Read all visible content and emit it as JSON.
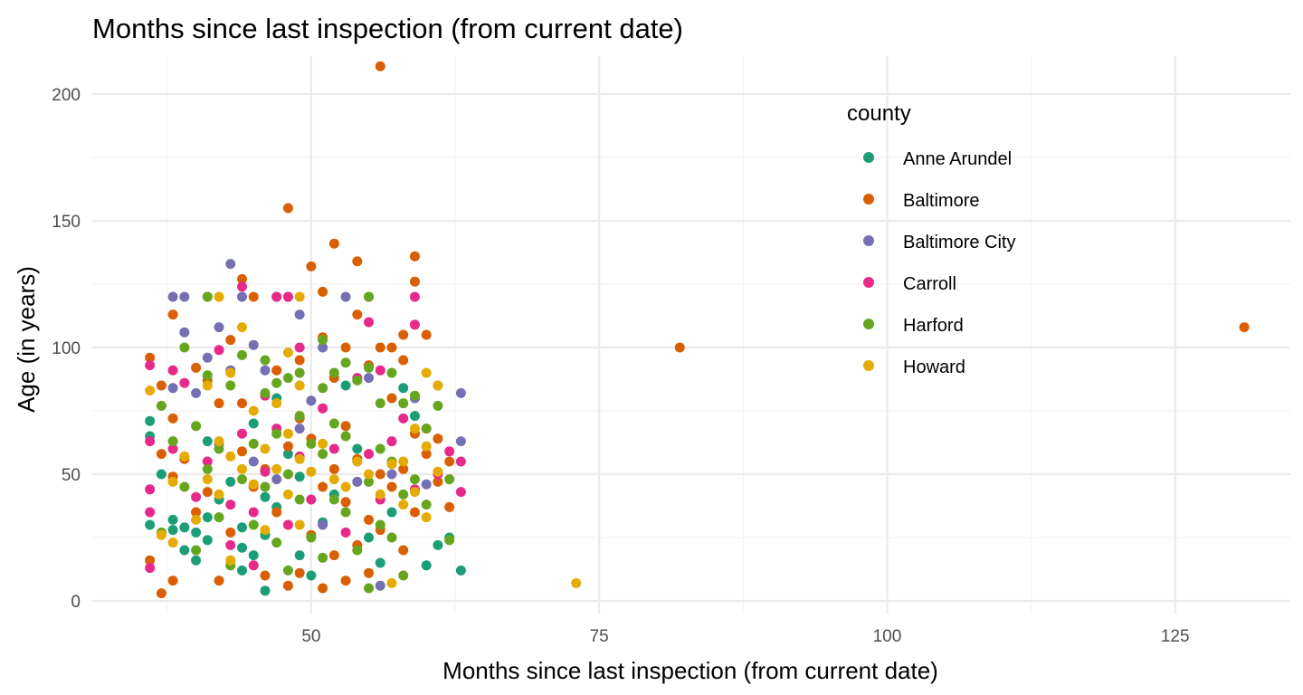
{
  "chart_data": {
    "type": "scatter",
    "title": "Months since last inspection (from current date)",
    "xlabel": "Months since last inspection (from current date)",
    "ylabel": "Age (in years)",
    "xlim": [
      31,
      135
    ],
    "ylim": [
      -5,
      215
    ],
    "xticks": [
      50,
      75,
      100,
      125
    ],
    "yticks": [
      0,
      50,
      100,
      150,
      200
    ],
    "grid": true,
    "legend": {
      "title": "county",
      "position": "top-right"
    },
    "series": [
      {
        "name": "Anne Arundel",
        "color": "#1b9e77",
        "points": [
          [
            36,
            71
          ],
          [
            36,
            65
          ],
          [
            36,
            30
          ],
          [
            37,
            50
          ],
          [
            38,
            28
          ],
          [
            38,
            32
          ],
          [
            39,
            20
          ],
          [
            39,
            29
          ],
          [
            40,
            27
          ],
          [
            40,
            16
          ],
          [
            41,
            24
          ],
          [
            41,
            33
          ],
          [
            41,
            63
          ],
          [
            42,
            40
          ],
          [
            43,
            47
          ],
          [
            44,
            12
          ],
          [
            44,
            21
          ],
          [
            44,
            29
          ],
          [
            45,
            70
          ],
          [
            45,
            18
          ],
          [
            46,
            4
          ],
          [
            46,
            26
          ],
          [
            46,
            41
          ],
          [
            47,
            37
          ],
          [
            47,
            80
          ],
          [
            48,
            58
          ],
          [
            49,
            18
          ],
          [
            49,
            49
          ],
          [
            50,
            10
          ],
          [
            51,
            31
          ],
          [
            52,
            42
          ],
          [
            53,
            85
          ],
          [
            54,
            60
          ],
          [
            55,
            25
          ],
          [
            56,
            15
          ],
          [
            57,
            35
          ],
          [
            58,
            84
          ],
          [
            59,
            73
          ],
          [
            60,
            14
          ],
          [
            61,
            22
          ],
          [
            62,
            25
          ],
          [
            63,
            12
          ]
        ]
      },
      {
        "name": "Baltimore",
        "color": "#d95f02",
        "points": [
          [
            36,
            96
          ],
          [
            36,
            16
          ],
          [
            37,
            85
          ],
          [
            37,
            58
          ],
          [
            37,
            3
          ],
          [
            38,
            113
          ],
          [
            38,
            72
          ],
          [
            38,
            49
          ],
          [
            38,
            8
          ],
          [
            39,
            56
          ],
          [
            40,
            92
          ],
          [
            40,
            35
          ],
          [
            41,
            87
          ],
          [
            41,
            43
          ],
          [
            42,
            78
          ],
          [
            42,
            8
          ],
          [
            43,
            103
          ],
          [
            43,
            27
          ],
          [
            44,
            127
          ],
          [
            44,
            78
          ],
          [
            44,
            59
          ],
          [
            45,
            120
          ],
          [
            45,
            45
          ],
          [
            46,
            52
          ],
          [
            46,
            10
          ],
          [
            47,
            91
          ],
          [
            47,
            35
          ],
          [
            48,
            155
          ],
          [
            48,
            61
          ],
          [
            48,
            6
          ],
          [
            49,
            95
          ],
          [
            49,
            72
          ],
          [
            49,
            11
          ],
          [
            50,
            132
          ],
          [
            50,
            64
          ],
          [
            50,
            26
          ],
          [
            51,
            122
          ],
          [
            51,
            104
          ],
          [
            51,
            45
          ],
          [
            51,
            5
          ],
          [
            52,
            141
          ],
          [
            52,
            88
          ],
          [
            52,
            52
          ],
          [
            52,
            18
          ],
          [
            53,
            100
          ],
          [
            53,
            69
          ],
          [
            53,
            39
          ],
          [
            53,
            8
          ],
          [
            54,
            134
          ],
          [
            54,
            113
          ],
          [
            54,
            56
          ],
          [
            54,
            22
          ],
          [
            55,
            120
          ],
          [
            55,
            93
          ],
          [
            55,
            32
          ],
          [
            55,
            11
          ],
          [
            56,
            211
          ],
          [
            56,
            100
          ],
          [
            56,
            50
          ],
          [
            56,
            28
          ],
          [
            57,
            100
          ],
          [
            57,
            80
          ],
          [
            57,
            45
          ],
          [
            58,
            105
          ],
          [
            58,
            95
          ],
          [
            58,
            52
          ],
          [
            58,
            20
          ],
          [
            59,
            136
          ],
          [
            59,
            126
          ],
          [
            59,
            66
          ],
          [
            59,
            35
          ],
          [
            60,
            105
          ],
          [
            60,
            58
          ],
          [
            61,
            64
          ],
          [
            61,
            47
          ],
          [
            62,
            37
          ],
          [
            62,
            55
          ],
          [
            82,
            100
          ],
          [
            131,
            108
          ]
        ]
      },
      {
        "name": "Baltimore City",
        "color": "#7570b3",
        "points": [
          [
            38,
            120
          ],
          [
            38,
            84
          ],
          [
            39,
            120
          ],
          [
            39,
            106
          ],
          [
            40,
            82
          ],
          [
            41,
            96
          ],
          [
            42,
            62
          ],
          [
            42,
            108
          ],
          [
            43,
            133
          ],
          [
            43,
            91
          ],
          [
            44,
            120
          ],
          [
            45,
            101
          ],
          [
            45,
            55
          ],
          [
            46,
            91
          ],
          [
            47,
            120
          ],
          [
            47,
            48
          ],
          [
            48,
            120
          ],
          [
            49,
            113
          ],
          [
            49,
            68
          ],
          [
            50,
            79
          ],
          [
            51,
            100
          ],
          [
            51,
            30
          ],
          [
            53,
            120
          ],
          [
            54,
            47
          ],
          [
            55,
            88
          ],
          [
            56,
            6
          ],
          [
            57,
            50
          ],
          [
            59,
            80
          ],
          [
            60,
            46
          ],
          [
            63,
            82
          ],
          [
            63,
            63
          ]
        ]
      },
      {
        "name": "Carroll",
        "color": "#e7298a",
        "points": [
          [
            36,
            93
          ],
          [
            36,
            63
          ],
          [
            36,
            44
          ],
          [
            36,
            35
          ],
          [
            36,
            13
          ],
          [
            38,
            91
          ],
          [
            38,
            60
          ],
          [
            39,
            86
          ],
          [
            40,
            41
          ],
          [
            41,
            120
          ],
          [
            41,
            55
          ],
          [
            42,
            99
          ],
          [
            43,
            38
          ],
          [
            43,
            22
          ],
          [
            44,
            124
          ],
          [
            44,
            66
          ],
          [
            45,
            35
          ],
          [
            45,
            14
          ],
          [
            46,
            81
          ],
          [
            46,
            51
          ],
          [
            47,
            120
          ],
          [
            47,
            68
          ],
          [
            48,
            120
          ],
          [
            48,
            30
          ],
          [
            49,
            100
          ],
          [
            49,
            57
          ],
          [
            50,
            40
          ],
          [
            51,
            76
          ],
          [
            52,
            60
          ],
          [
            53,
            27
          ],
          [
            54,
            88
          ],
          [
            55,
            110
          ],
          [
            55,
            58
          ],
          [
            56,
            91
          ],
          [
            56,
            40
          ],
          [
            57,
            63
          ],
          [
            58,
            72
          ],
          [
            59,
            120
          ],
          [
            59,
            109
          ],
          [
            59,
            44
          ],
          [
            60,
            68
          ],
          [
            61,
            50
          ],
          [
            62,
            59
          ],
          [
            63,
            55
          ],
          [
            63,
            43
          ]
        ]
      },
      {
        "name": "Harford",
        "color": "#66a61e",
        "points": [
          [
            37,
            77
          ],
          [
            37,
            27
          ],
          [
            38,
            63
          ],
          [
            39,
            100
          ],
          [
            39,
            45
          ],
          [
            40,
            69
          ],
          [
            40,
            20
          ],
          [
            41,
            120
          ],
          [
            41,
            89
          ],
          [
            41,
            52
          ],
          [
            42,
            60
          ],
          [
            42,
            33
          ],
          [
            43,
            85
          ],
          [
            43,
            14
          ],
          [
            44,
            97
          ],
          [
            44,
            48
          ],
          [
            45,
            62
          ],
          [
            45,
            30
          ],
          [
            46,
            95
          ],
          [
            46,
            82
          ],
          [
            46,
            45
          ],
          [
            47,
            86
          ],
          [
            47,
            66
          ],
          [
            47,
            23
          ],
          [
            48,
            88
          ],
          [
            48,
            50
          ],
          [
            48,
            12
          ],
          [
            49,
            90
          ],
          [
            49,
            73
          ],
          [
            49,
            40
          ],
          [
            50,
            62
          ],
          [
            50,
            25
          ],
          [
            51,
            103
          ],
          [
            51,
            84
          ],
          [
            51,
            58
          ],
          [
            51,
            17
          ],
          [
            52,
            90
          ],
          [
            52,
            70
          ],
          [
            52,
            40
          ],
          [
            53,
            94
          ],
          [
            53,
            65
          ],
          [
            53,
            35
          ],
          [
            54,
            87
          ],
          [
            54,
            55
          ],
          [
            54,
            20
          ],
          [
            55,
            120
          ],
          [
            55,
            92
          ],
          [
            55,
            47
          ],
          [
            55,
            5
          ],
          [
            56,
            78
          ],
          [
            56,
            60
          ],
          [
            56,
            30
          ],
          [
            57,
            90
          ],
          [
            57,
            55
          ],
          [
            57,
            25
          ],
          [
            58,
            78
          ],
          [
            58,
            42
          ],
          [
            58,
            10
          ],
          [
            59,
            81
          ],
          [
            59,
            48
          ],
          [
            60,
            68
          ],
          [
            60,
            38
          ],
          [
            61,
            77
          ],
          [
            61,
            85
          ],
          [
            62,
            48
          ],
          [
            62,
            24
          ]
        ]
      },
      {
        "name": "Howard",
        "color": "#e6ab02",
        "points": [
          [
            36,
            83
          ],
          [
            37,
            26
          ],
          [
            38,
            47
          ],
          [
            38,
            23
          ],
          [
            39,
            57
          ],
          [
            40,
            32
          ],
          [
            41,
            85
          ],
          [
            41,
            48
          ],
          [
            42,
            120
          ],
          [
            42,
            63
          ],
          [
            42,
            42
          ],
          [
            43,
            90
          ],
          [
            43,
            57
          ],
          [
            43,
            16
          ],
          [
            44,
            108
          ],
          [
            44,
            52
          ],
          [
            45,
            75
          ],
          [
            45,
            46
          ],
          [
            46,
            60
          ],
          [
            46,
            28
          ],
          [
            47,
            78
          ],
          [
            47,
            52
          ],
          [
            48,
            98
          ],
          [
            48,
            66
          ],
          [
            48,
            42
          ],
          [
            49,
            120
          ],
          [
            49,
            85
          ],
          [
            49,
            56
          ],
          [
            49,
            30
          ],
          [
            50,
            51
          ],
          [
            51,
            62
          ],
          [
            52,
            48
          ],
          [
            53,
            45
          ],
          [
            54,
            55
          ],
          [
            55,
            50
          ],
          [
            56,
            42
          ],
          [
            57,
            54
          ],
          [
            57,
            7
          ],
          [
            58,
            55
          ],
          [
            58,
            38
          ],
          [
            59,
            68
          ],
          [
            59,
            43
          ],
          [
            60,
            90
          ],
          [
            60,
            61
          ],
          [
            60,
            33
          ],
          [
            61,
            85
          ],
          [
            61,
            51
          ],
          [
            73,
            7
          ]
        ]
      }
    ]
  }
}
